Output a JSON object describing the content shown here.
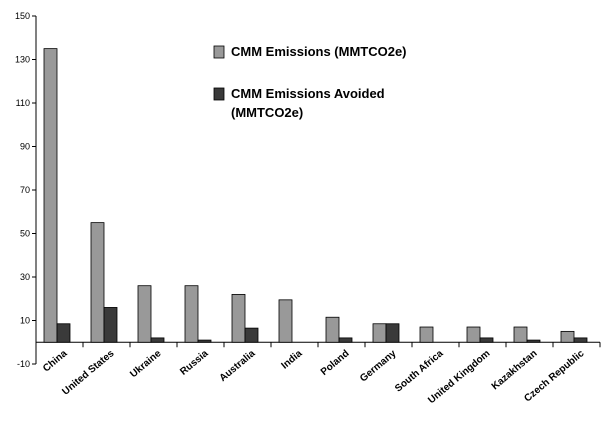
{
  "chart_data": {
    "type": "bar",
    "title": "",
    "xlabel": "",
    "ylabel": "",
    "ylim": [
      -10,
      150
    ],
    "yticks": [
      -10,
      10,
      30,
      50,
      70,
      90,
      110,
      130,
      150
    ],
    "grid": false,
    "legend_position": "top-right",
    "categories": [
      "China",
      "United States",
      "Ukraine",
      "Russia",
      "Australia",
      "India",
      "Poland",
      "Germany",
      "South Africa",
      "United Kingdom",
      "Kazakhstan",
      "Czech Republic"
    ],
    "series": [
      {
        "name": "CMM Emissions (MMTCO2e)",
        "legend_lines": [
          "CMM Emissions (MMTCO2e)"
        ],
        "color": "#999999",
        "values": [
          135,
          55,
          26,
          26,
          22,
          19.5,
          11.5,
          8.5,
          7,
          7,
          7,
          5
        ]
      },
      {
        "name": "CMM Emissions Avoided (MMTCO2e)",
        "legend_lines": [
          "CMM Emissions Avoided",
          "(MMTCO2e)"
        ],
        "color": "#3a3a3a",
        "values": [
          8.5,
          16,
          2,
          1,
          6.5,
          0,
          2,
          8.5,
          0,
          2,
          1,
          2
        ]
      }
    ]
  }
}
